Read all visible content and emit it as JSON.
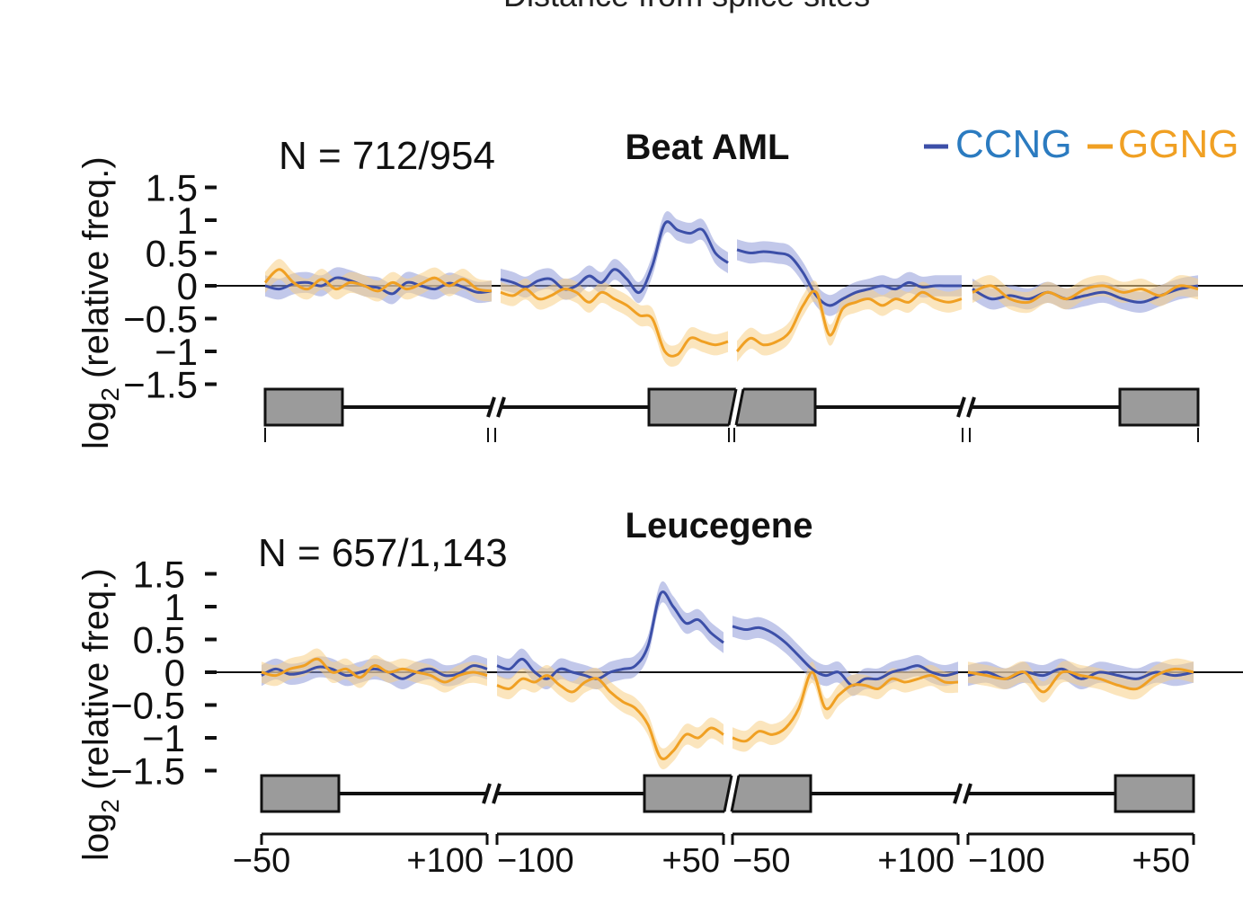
{
  "cut_title": "Distance from splice sites",
  "legend": [
    {
      "name": "CCNG",
      "color": "#2b7bc0",
      "line_color": "#3c4fa8"
    },
    {
      "name": "GGNG",
      "color": "#f0a023",
      "line_color": "#f0a023"
    }
  ],
  "colors": {
    "ccng_line": "#3c4fa8",
    "ccng_band": "#8f9ad8",
    "ggng_line": "#f0a023",
    "ggng_band": "#f8cf86",
    "exon_fill": "#9b9b9b"
  },
  "y_axis": {
    "label_main": "log",
    "label_sub": "2",
    "label_rest": "(relative freq.)",
    "ticks": [
      "1.5",
      "1",
      "0.5",
      "0",
      "−0.5",
      "−1",
      "−1.5"
    ],
    "tick_values": [
      1.5,
      1,
      0.5,
      0,
      -0.5,
      -1,
      -1.5
    ]
  },
  "x_axis": {
    "ticks": [
      "−50",
      "+100",
      "−100",
      "+50",
      "−50",
      "+100",
      "−100",
      "+50"
    ]
  },
  "chart_data": [
    {
      "type": "line",
      "title": "Beat AML",
      "n_label": "N = 712/954",
      "ylabel": "log2 (relative freq.)",
      "ylim": [
        -1.5,
        1.5
      ],
      "segments": [
        "upstream exon −50 to +100",
        "−100 to +50 around cassette exon start",
        "−50 to +100 around cassette exon end",
        "downstream exon −100 to +50"
      ],
      "series": [
        {
          "name": "CCNG",
          "segments": [
            [
              0.0,
              -0.05,
              0.03,
              0.05,
              0.0,
              0.12,
              0.08,
              0.0,
              -0.03,
              -0.12,
              0.05,
              0.0,
              -0.05,
              0.04,
              -0.02,
              -0.1,
              -0.08
            ],
            [
              0.1,
              0.05,
              -0.02,
              0.08,
              0.1,
              -0.05,
              0.0,
              0.15,
              0.05,
              0.25,
              0.1,
              -0.1,
              0.3,
              0.95,
              0.85,
              0.8,
              0.85,
              0.5,
              0.35
            ],
            [
              0.55,
              0.5,
              0.52,
              0.5,
              0.45,
              0.2,
              -0.15,
              -0.3,
              -0.2,
              -0.1,
              -0.05,
              0.0,
              -0.05,
              0.05,
              -0.02,
              0.0,
              0.0,
              0.0
            ],
            [
              -0.05,
              -0.2,
              -0.15,
              -0.2,
              -0.1,
              -0.2,
              -0.15,
              -0.1,
              -0.2,
              -0.25,
              -0.15,
              -0.05,
              0.0
            ]
          ]
        },
        {
          "name": "GGNG",
          "segments": [
            [
              0.05,
              0.25,
              0.05,
              -0.05,
              0.1,
              -0.05,
              0.05,
              0.0,
              -0.08,
              0.05,
              -0.05,
              0.03,
              0.12,
              0.0,
              0.1,
              -0.05,
              -0.08
            ],
            [
              -0.1,
              -0.15,
              -0.05,
              -0.2,
              -0.15,
              -0.05,
              -0.1,
              -0.25,
              -0.1,
              -0.2,
              -0.3,
              -0.45,
              -0.5,
              -1.0,
              -1.05,
              -0.8,
              -0.85,
              -0.9,
              -0.85
            ],
            [
              -1.0,
              -0.8,
              -0.9,
              -0.85,
              -0.7,
              -0.3,
              -0.1,
              -0.75,
              -0.35,
              -0.25,
              -0.2,
              -0.3,
              -0.2,
              -0.25,
              -0.1,
              -0.2,
              -0.25,
              -0.2
            ],
            [
              -0.1,
              0.0,
              -0.2,
              -0.25,
              -0.1,
              -0.2,
              -0.05,
              0.0,
              -0.1,
              -0.05,
              -0.15,
              0.0,
              -0.05
            ]
          ]
        }
      ]
    },
    {
      "type": "line",
      "title": "Leucegene",
      "n_label": "N = 657/1,143",
      "ylabel": "log2 (relative freq.)",
      "ylim": [
        -1.5,
        1.5
      ],
      "segments": [
        "upstream exon −50 to +100",
        "−100 to +50 around cassette exon start",
        "−50 to +100 around cassette exon end",
        "downstream exon −100 to +50"
      ],
      "series": [
        {
          "name": "CCNG",
          "segments": [
            [
              -0.05,
              0.05,
              -0.03,
              0.0,
              0.08,
              0.05,
              -0.05,
              0.0,
              0.05,
              0.0,
              -0.1,
              0.0,
              0.05,
              -0.05,
              -0.02,
              0.1,
              0.05
            ],
            [
              0.1,
              0.05,
              0.2,
              0.0,
              -0.1,
              0.05,
              0.0,
              -0.05,
              -0.1,
              0.0,
              0.05,
              0.1,
              0.4,
              1.2,
              1.0,
              0.75,
              0.8,
              0.6,
              0.45
            ],
            [
              0.7,
              0.65,
              0.68,
              0.6,
              0.45,
              0.25,
              0.05,
              -0.05,
              0.0,
              -0.2,
              -0.1,
              -0.1,
              0.0,
              0.05,
              0.1,
              0.0,
              -0.05,
              0.0
            ],
            [
              -0.05,
              0.0,
              -0.1,
              0.0,
              -0.05,
              0.05,
              -0.1,
              0.0,
              -0.05,
              -0.1,
              0.0,
              -0.05,
              0.0
            ]
          ]
        },
        {
          "name": "GGNG",
          "segments": [
            [
              0.0,
              -0.05,
              0.05,
              0.1,
              0.2,
              0.0,
              0.05,
              -0.08,
              0.1,
              0.0,
              0.05,
              0.0,
              -0.05,
              -0.15,
              -0.05,
              0.0,
              -0.05
            ],
            [
              -0.2,
              -0.25,
              -0.1,
              -0.15,
              -0.05,
              -0.2,
              -0.3,
              -0.15,
              -0.1,
              -0.3,
              -0.45,
              -0.55,
              -0.8,
              -1.3,
              -1.2,
              -0.95,
              -1.0,
              -0.85,
              -0.95
            ],
            [
              -1.0,
              -1.05,
              -0.9,
              -0.95,
              -0.85,
              -0.55,
              0.0,
              -0.55,
              -0.35,
              -0.2,
              -0.2,
              -0.25,
              -0.1,
              -0.15,
              -0.1,
              -0.05,
              -0.15,
              -0.15
            ],
            [
              0.0,
              -0.05,
              -0.1,
              0.0,
              -0.3,
              0.0,
              -0.05,
              -0.1,
              -0.2,
              -0.25,
              -0.05,
              0.05,
              0.0
            ]
          ]
        }
      ]
    }
  ]
}
